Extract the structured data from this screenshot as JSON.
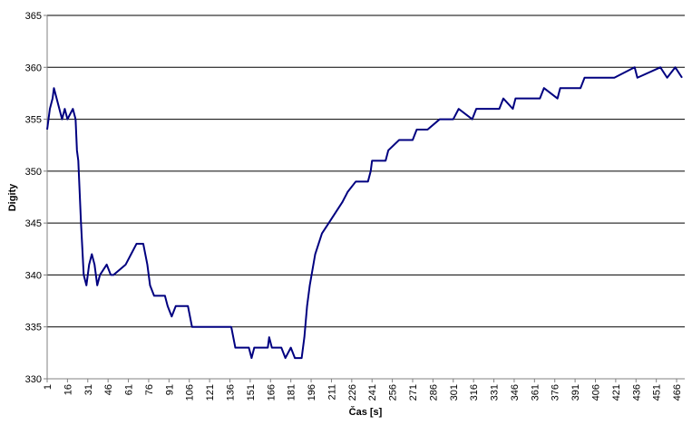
{
  "chart_data": {
    "type": "line",
    "x_label": "Čas [s]",
    "y_label": "Digity",
    "x": [
      1,
      3,
      5,
      6,
      8,
      10,
      12,
      14,
      16,
      20,
      22,
      23,
      24,
      26,
      28,
      30,
      32,
      34,
      36,
      38,
      40,
      45,
      48,
      50,
      59,
      63,
      67,
      72,
      75,
      77,
      80,
      88,
      90,
      93,
      96,
      100,
      105,
      108,
      120,
      137,
      140,
      150,
      152,
      154,
      164,
      165,
      167,
      174,
      177,
      181,
      184,
      189,
      191,
      193,
      195,
      199,
      204,
      209,
      214,
      219,
      223,
      229,
      238,
      240,
      241,
      251,
      253,
      261,
      271,
      274,
      282,
      291,
      301,
      305,
      315,
      318,
      335,
      338,
      345,
      347,
      365,
      368,
      378,
      380,
      395,
      398,
      412,
      418,
      420,
      435,
      437,
      454,
      459,
      465,
      470
    ],
    "series": [
      {
        "color": "#000080",
        "values": [
          354,
          356,
          357,
          358,
          357,
          356,
          355,
          356,
          355,
          356,
          355,
          352,
          351,
          345,
          340,
          339,
          341,
          342,
          341,
          339,
          340,
          341,
          340,
          340,
          341,
          342,
          343,
          343,
          341,
          339,
          338,
          338,
          337,
          336,
          337,
          337,
          337,
          335,
          335,
          335,
          333,
          333,
          332,
          333,
          333,
          334,
          333,
          333,
          332,
          333,
          332,
          332,
          334,
          337,
          339,
          342,
          344,
          345,
          346,
          347,
          348,
          349,
          349,
          350,
          351,
          351,
          352,
          353,
          353,
          354,
          354,
          355,
          355,
          356,
          355,
          356,
          356,
          357,
          356,
          357,
          357,
          358,
          357,
          358,
          358,
          359,
          359,
          359,
          359,
          360,
          359,
          360,
          359,
          360,
          359
        ]
      }
    ],
    "xlim": [
      1,
      472
    ],
    "xticks": [
      1,
      16,
      31,
      46,
      61,
      76,
      91,
      106,
      121,
      136,
      151,
      166,
      181,
      196,
      211,
      226,
      241,
      256,
      271,
      286,
      301,
      316,
      331,
      346,
      361,
      376,
      391,
      406,
      421,
      436,
      451,
      466
    ],
    "ylim": [
      330,
      365
    ],
    "yticks": [
      330,
      335,
      340,
      345,
      350,
      355,
      360,
      365
    ],
    "grid": true
  }
}
